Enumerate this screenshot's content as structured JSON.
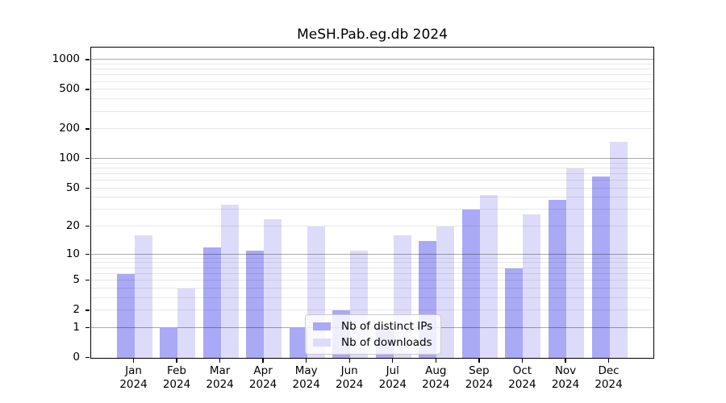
{
  "chart_data": {
    "type": "bar",
    "title": "MeSH.Pab.eg.db 2024",
    "year_label": "2024",
    "categories": [
      "Jan",
      "Feb",
      "Mar",
      "Apr",
      "May",
      "Jun",
      "Jul",
      "Aug",
      "Sep",
      "Oct",
      "Nov",
      "Dec"
    ],
    "series": [
      {
        "name": "Nb of distinct IPs",
        "color": "#a9a9f6",
        "values": [
          6,
          1,
          12,
          11,
          1,
          2,
          1,
          14,
          30,
          7,
          38,
          66
        ]
      },
      {
        "name": "Nb of downloads",
        "color": "#dcdcfa",
        "values": [
          16,
          4,
          34,
          24,
          20,
          11,
          16,
          20,
          43,
          27,
          80,
          150
        ]
      }
    ],
    "y_scale": "log10(1+x)",
    "y_ticks": [
      0,
      1,
      2,
      5,
      10,
      20,
      50,
      100,
      200,
      500,
      1000
    ],
    "y_major_grid": [
      1,
      10,
      100,
      1000
    ],
    "y_minor_grid_decades": [
      1,
      10,
      100
    ],
    "ylim": [
      0,
      1300
    ],
    "grid": true,
    "legend_position": "lower-center",
    "legend_entries": [
      "Nb of distinct IPs",
      "Nb of downloads"
    ]
  }
}
